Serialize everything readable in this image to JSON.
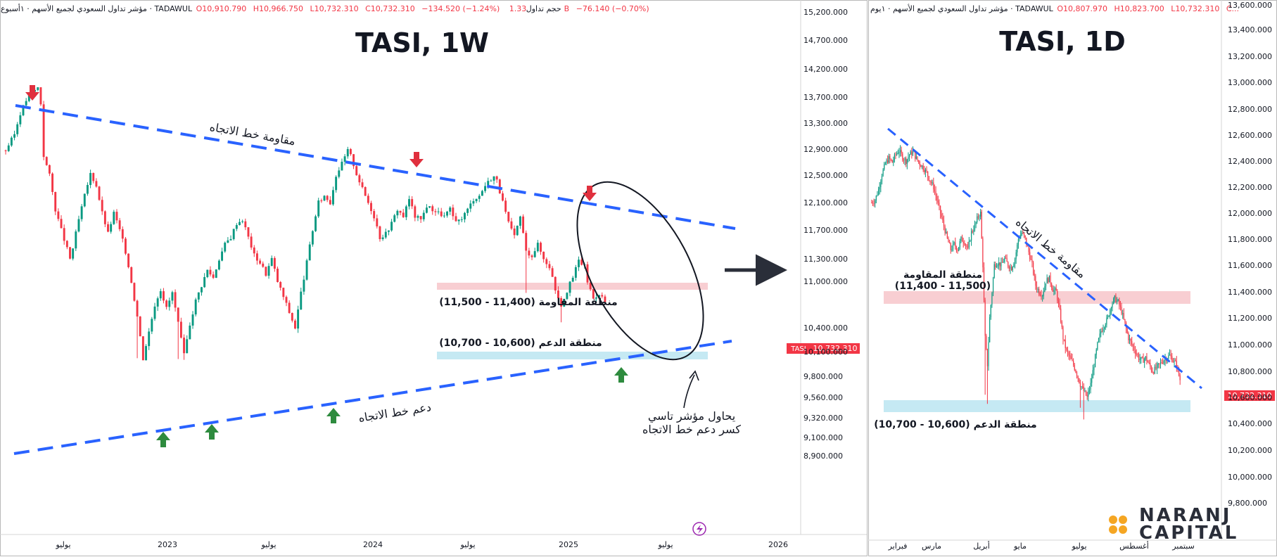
{
  "colors": {
    "up": "#089981",
    "down": "#f23645",
    "trend": "#2962ff",
    "resist_zone": "#f7c9cd",
    "support_zone": "#bfe7f2",
    "marker_down": "#e0303e",
    "marker_up": "#2e8b3e",
    "price_tag": "#f23645",
    "brand_icon": "#f5a623"
  },
  "panels": [
    {
      "id": "weekly",
      "header": {
        "symbol_text": "مؤشر تداول السعودي لجميع الأسهم · ١أسبوع · TADAWUL",
        "o": "O10,910.790",
        "h": "H10,966.750",
        "l": "L10,732.310",
        "c": "C10,732.310",
        "chg": "−134.520 (−1.24%)",
        "vol_label": "حجم تداول",
        "vol": "1.33B",
        "vol_chg": "−76.140 (−0.70%)"
      },
      "title": "TASI, 1W",
      "annotations": {
        "resistance_trendline": "مقاومة خط الاتجاه",
        "support_trendline": "دعم خط الاتجاه",
        "resistance_zone": "منطقة المقاومة (11,400 - 11,500)",
        "support_zone": "منطقة الدعم (10,600 - 10,700)",
        "note_line1": "يحاول مؤشر تاسي",
        "note_line2": "كسر دعم خط الاتجاه"
      },
      "price_tag": {
        "symbol": "TASI",
        "value": "10,732.310"
      }
    },
    {
      "id": "daily",
      "header": {
        "symbol_text": "مؤشر تداول السعودي لجميع الأسهم · ١يوم · TADAWUL",
        "o": "O10,807.970",
        "h": "H10,823.700",
        "l": "L10,732.310",
        "c": "C..."
      },
      "title": "TASI, 1D",
      "annotations": {
        "resistance_trendline": "مقاومة خط الاتجاه",
        "resistance_zone_l1": "منطقة المقاومة",
        "resistance_zone_l2": "(11,400 - 11,500)",
        "support_zone": "منطقة الدعم (10,600 - 10,700)"
      },
      "price_tag": {
        "value": "10,732.310"
      }
    }
  ],
  "brand": {
    "line1": "NARANJ",
    "line2": "CAPITAL"
  },
  "chart_data": [
    {
      "type": "candlestick",
      "title": "TASI, 1W",
      "y_axis_ticks": [
        "15,200.000",
        "14,700.000",
        "14,200.000",
        "13,700.000",
        "13,300.000",
        "12,900.000",
        "12,500.000",
        "12,100.000",
        "11,700.000",
        "11,300.000",
        "11,000.000",
        "10,400.000",
        "10,100.000",
        "9,800.000",
        "9,560.000",
        "9,320.000",
        "9,100.000",
        "8,900.000"
      ],
      "x_axis_ticks": [
        "يوليو",
        "2023",
        "يوليو",
        "2024",
        "يوليو",
        "2025",
        "يوليو",
        "2026"
      ],
      "path": [
        [
          0,
          12880
        ],
        [
          3,
          13130
        ],
        [
          5,
          13450
        ],
        [
          7,
          13650
        ],
        [
          9,
          13780
        ],
        [
          11,
          13870
        ],
        [
          12,
          13600
        ],
        [
          13,
          12800
        ],
        [
          15,
          12500
        ],
        [
          17,
          12000
        ],
        [
          19,
          11700
        ],
        [
          22,
          11300
        ],
        [
          23,
          11450
        ],
        [
          25,
          11850
        ],
        [
          27,
          12200
        ],
        [
          29,
          12520
        ],
        [
          31,
          12350
        ],
        [
          33,
          11950
        ],
        [
          35,
          11650
        ],
        [
          37,
          11950
        ],
        [
          39,
          11700
        ],
        [
          41,
          11400
        ],
        [
          43,
          11000
        ],
        [
          45,
          10550
        ],
        [
          47,
          10020
        ],
        [
          49,
          10350
        ],
        [
          51,
          10700
        ],
        [
          53,
          10900
        ],
        [
          55,
          10650
        ],
        [
          57,
          10850
        ],
        [
          59,
          10450
        ],
        [
          61,
          10050
        ],
        [
          63,
          10450
        ],
        [
          65,
          10750
        ],
        [
          67,
          10950
        ],
        [
          69,
          11150
        ],
        [
          71,
          11050
        ],
        [
          73,
          11300
        ],
        [
          75,
          11500
        ],
        [
          77,
          11600
        ],
        [
          79,
          11800
        ],
        [
          81,
          11850
        ],
        [
          83,
          11600
        ],
        [
          85,
          11350
        ],
        [
          87,
          11250
        ],
        [
          89,
          11100
        ],
        [
          91,
          11300
        ],
        [
          93,
          11000
        ],
        [
          95,
          10800
        ],
        [
          97,
          10600
        ],
        [
          99,
          10400
        ],
        [
          101,
          10850
        ],
        [
          103,
          11250
        ],
        [
          105,
          11700
        ],
        [
          107,
          12100
        ],
        [
          109,
          12200
        ],
        [
          111,
          12100
        ],
        [
          113,
          12500
        ],
        [
          115,
          12680
        ],
        [
          117,
          12880
        ],
        [
          118,
          12800
        ],
        [
          120,
          12520
        ],
        [
          122,
          12300
        ],
        [
          124,
          12100
        ],
        [
          126,
          11900
        ],
        [
          128,
          11600
        ],
        [
          130,
          11650
        ],
        [
          132,
          11800
        ],
        [
          134,
          12000
        ],
        [
          136,
          11900
        ],
        [
          138,
          12150
        ],
        [
          140,
          11900
        ],
        [
          142,
          11850
        ],
        [
          144,
          12050
        ],
        [
          146,
          12000
        ],
        [
          148,
          11950
        ],
        [
          150,
          11900
        ],
        [
          152,
          12000
        ],
        [
          154,
          11800
        ],
        [
          156,
          11880
        ],
        [
          158,
          12000
        ],
        [
          160,
          12150
        ],
        [
          162,
          12200
        ],
        [
          164,
          12350
        ],
        [
          166,
          12450
        ],
        [
          167,
          12480
        ],
        [
          168,
          12420
        ],
        [
          170,
          12100
        ],
        [
          172,
          11800
        ],
        [
          174,
          11600
        ],
        [
          176,
          11900
        ],
        [
          178,
          11400
        ],
        [
          180,
          11350
        ],
        [
          182,
          11500
        ],
        [
          184,
          11300
        ],
        [
          186,
          11200
        ],
        [
          188,
          10900
        ],
        [
          190,
          10700
        ],
        [
          192,
          10880
        ],
        [
          194,
          11050
        ],
        [
          196,
          11280
        ],
        [
          198,
          11200
        ],
        [
          199,
          11000
        ],
        [
          201,
          10780
        ],
        [
          203,
          10850
        ],
        [
          205,
          10732
        ]
      ],
      "lows": [
        [
          45,
          10020
        ],
        [
          47,
          10000
        ],
        [
          59,
          10010
        ],
        [
          61,
          10000
        ],
        [
          99,
          10380
        ],
        [
          178,
          10850
        ],
        [
          190,
          10470
        ]
      ],
      "annotations": {
        "resistance_zone": [
          11400,
          11500
        ],
        "support_zone": [
          10600,
          10700
        ]
      },
      "last": 10732.31
    },
    {
      "type": "candlestick",
      "title": "TASI, 1D",
      "y_axis_ticks": [
        "13,600.000",
        "13,400.000",
        "13,200.000",
        "13,000.000",
        "12,800.000",
        "12,600.000",
        "12,400.000",
        "12,200.000",
        "12,000.000",
        "11,800.000",
        "11,600.000",
        "11,400.000",
        "11,200.000",
        "11,000.000",
        "10,800.000",
        "10,600.000",
        "10,400.000",
        "10,200.000",
        "10,000.000",
        "9,800.000"
      ],
      "x_axis_ticks": [
        "فبراير",
        "مارس",
        "أبريل",
        "مايو",
        "يوليو",
        "أغسطس",
        "سبتمبر"
      ],
      "path": [
        [
          0,
          12080
        ],
        [
          3,
          12100
        ],
        [
          6,
          12180
        ],
        [
          9,
          12300
        ],
        [
          12,
          12380
        ],
        [
          15,
          12420
        ],
        [
          18,
          12390
        ],
        [
          21,
          12450
        ],
        [
          24,
          12480
        ],
        [
          27,
          12430
        ],
        [
          30,
          12400
        ],
        [
          33,
          12450
        ],
        [
          36,
          12470
        ],
        [
          39,
          12420
        ],
        [
          42,
          12380
        ],
        [
          45,
          12350
        ],
        [
          48,
          12310
        ],
        [
          51,
          12250
        ],
        [
          54,
          12200
        ],
        [
          57,
          12100
        ],
        [
          60,
          12000
        ],
        [
          63,
          11900
        ],
        [
          66,
          11800
        ],
        [
          69,
          11720
        ],
        [
          72,
          11760
        ],
        [
          75,
          11720
        ],
        [
          78,
          11800
        ],
        [
          81,
          11780
        ],
        [
          84,
          11720
        ],
        [
          87,
          11850
        ],
        [
          90,
          11900
        ],
        [
          93,
          11980
        ],
        [
          95,
          12000
        ],
        [
          97,
          11600
        ],
        [
          99,
          11050
        ],
        [
          101,
          10850
        ],
        [
          103,
          11200
        ],
        [
          105,
          11400
        ],
        [
          107,
          11600
        ],
        [
          110,
          11620
        ],
        [
          113,
          11600
        ],
        [
          116,
          11650
        ],
        [
          119,
          11600
        ],
        [
          122,
          11580
        ],
        [
          125,
          11650
        ],
        [
          128,
          11800
        ],
        [
          131,
          11850
        ],
        [
          134,
          11800
        ],
        [
          137,
          11700
        ],
        [
          140,
          11600
        ],
        [
          143,
          11450
        ],
        [
          146,
          11400
        ],
        [
          149,
          11380
        ],
        [
          152,
          11480
        ],
        [
          155,
          11500
        ],
        [
          158,
          11420
        ],
        [
          161,
          11400
        ],
        [
          164,
          11250
        ],
        [
          167,
          11050
        ],
        [
          170,
          10950
        ],
        [
          173,
          10900
        ],
        [
          176,
          10850
        ],
        [
          179,
          10780
        ],
        [
          182,
          10700
        ],
        [
          185,
          10650
        ],
        [
          188,
          10600
        ],
        [
          191,
          10700
        ],
        [
          194,
          10850
        ],
        [
          197,
          11000
        ],
        [
          200,
          11100
        ],
        [
          203,
          11150
        ],
        [
          206,
          11200
        ],
        [
          209,
          11300
        ],
        [
          212,
          11350
        ],
        [
          215,
          11320
        ],
        [
          218,
          11250
        ],
        [
          221,
          11150
        ],
        [
          224,
          11050
        ],
        [
          227,
          11000
        ],
        [
          230,
          10950
        ],
        [
          233,
          10900
        ],
        [
          236,
          10880
        ],
        [
          239,
          10900
        ],
        [
          242,
          10850
        ],
        [
          245,
          10800
        ],
        [
          248,
          10820
        ],
        [
          251,
          10850
        ],
        [
          254,
          10880
        ],
        [
          257,
          10900
        ],
        [
          260,
          10920
        ],
        [
          263,
          10880
        ],
        [
          266,
          10850
        ],
        [
          269,
          10732
        ]
      ],
      "lows": [
        [
          99,
          10620
        ],
        [
          101,
          10550
        ],
        [
          182,
          10520
        ],
        [
          185,
          10430
        ],
        [
          188,
          10580
        ]
      ],
      "annotations": {
        "resistance_zone": [
          11400,
          11500
        ],
        "support_zone": [
          10600,
          10700
        ]
      },
      "last": 10732.31
    }
  ]
}
